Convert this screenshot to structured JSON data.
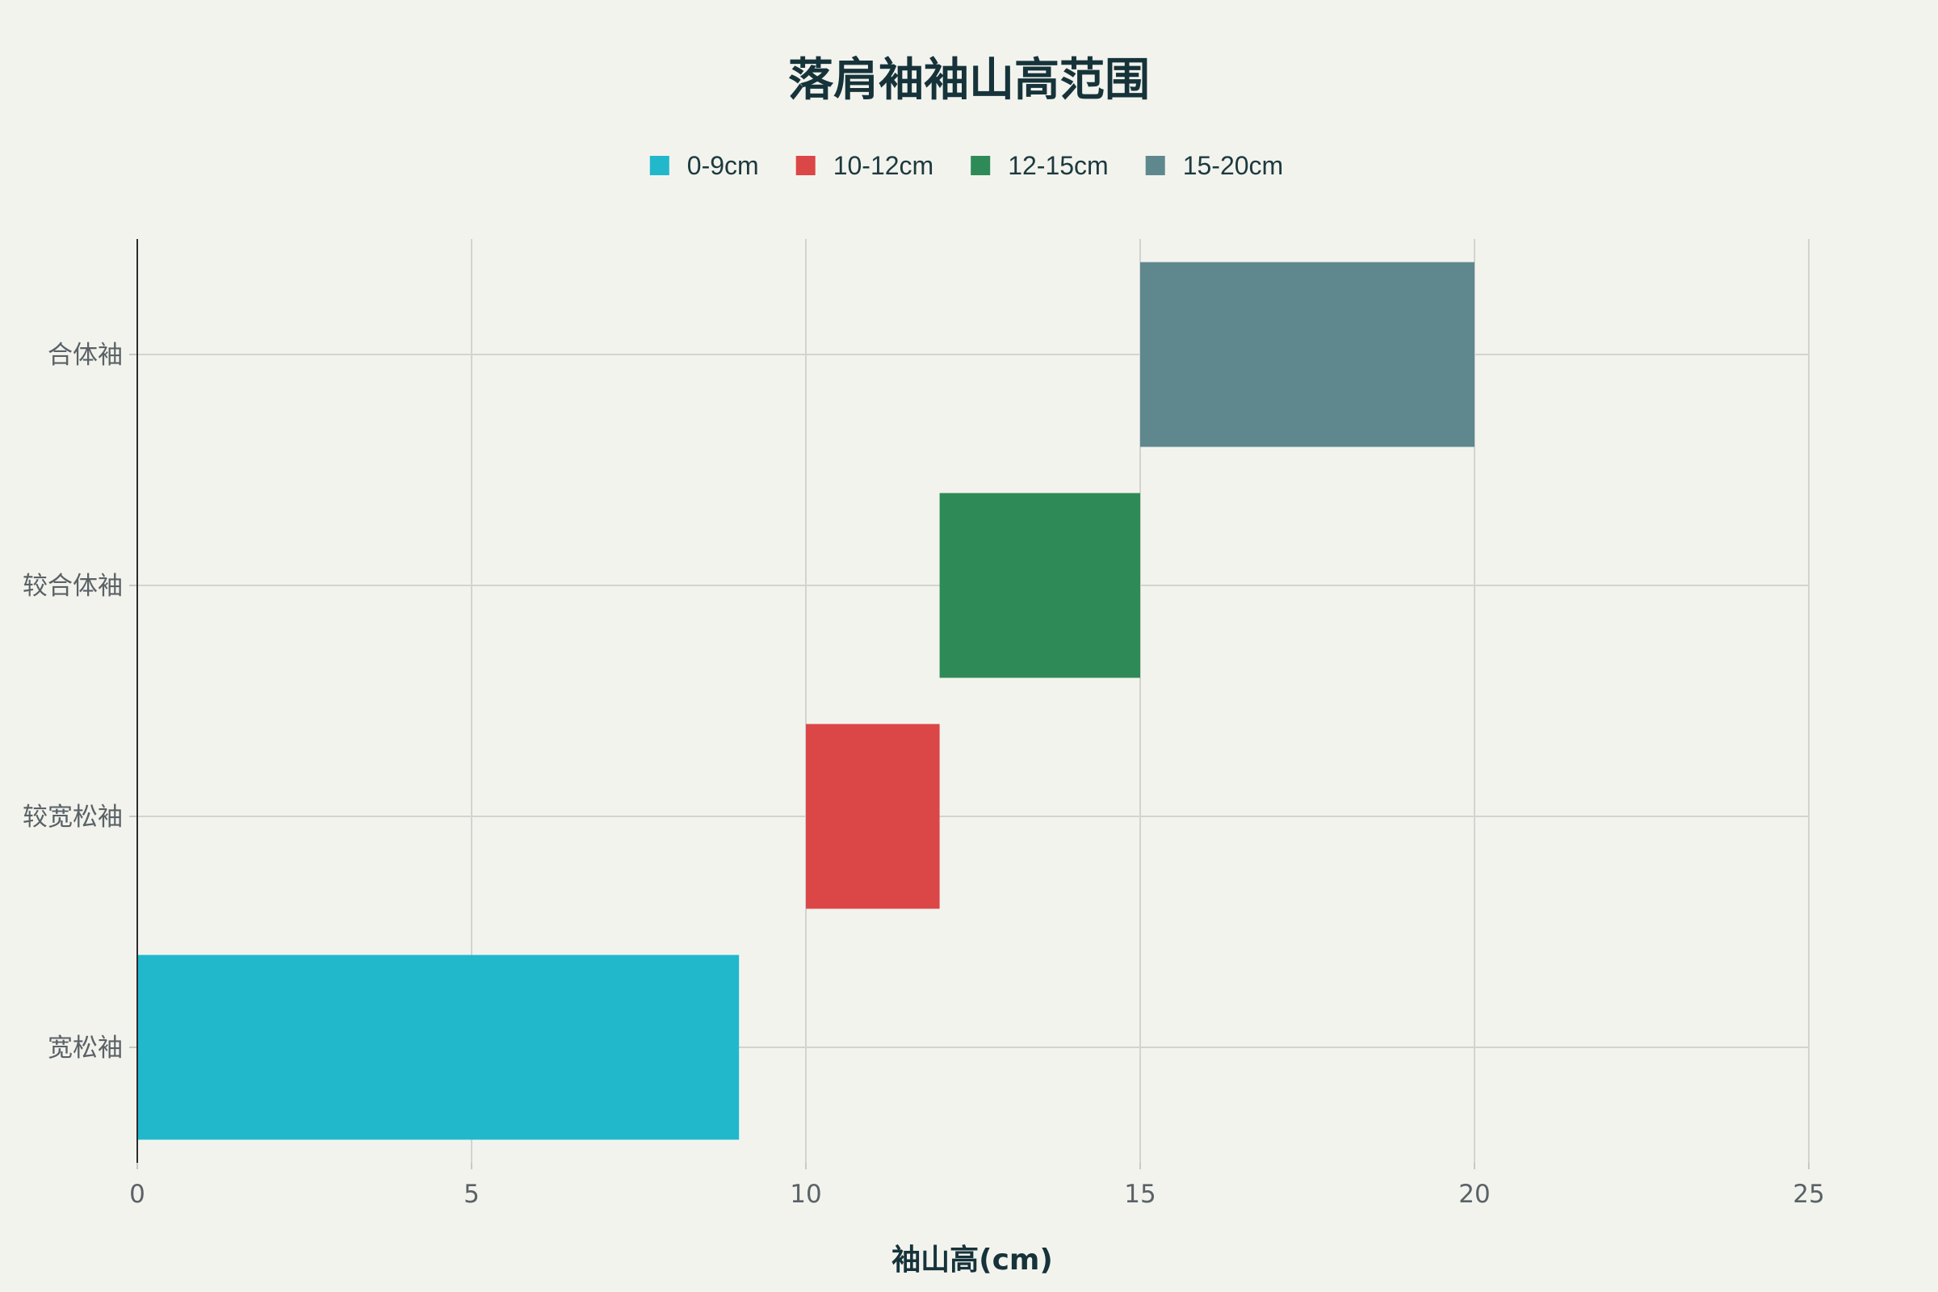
{
  "chart_data": {
    "type": "bar",
    "orientation": "horizontal",
    "title": "落肩袖袖山高范围",
    "xlabel": "袖山高(cm)",
    "ylabel": "",
    "xlim": [
      0,
      25
    ],
    "x_ticks": [
      0,
      5,
      10,
      15,
      20,
      25
    ],
    "categories": [
      "宽松袖",
      "较宽松袖",
      "较合体袖",
      "合体袖"
    ],
    "series": [
      {
        "name": "0-9cm",
        "color": "#21b8cc",
        "category": "宽松袖",
        "start": 0,
        "end": 9
      },
      {
        "name": "10-12cm",
        "color": "#db4647",
        "category": "较宽松袖",
        "start": 10,
        "end": 12
      },
      {
        "name": "12-15cm",
        "color": "#2e8b57",
        "category": "较合体袖",
        "start": 12,
        "end": 15
      },
      {
        "name": "15-20cm",
        "color": "#5e888e",
        "category": "合体袖",
        "start": 15,
        "end": 20
      }
    ],
    "legend_position": "top-center",
    "grid": true
  }
}
